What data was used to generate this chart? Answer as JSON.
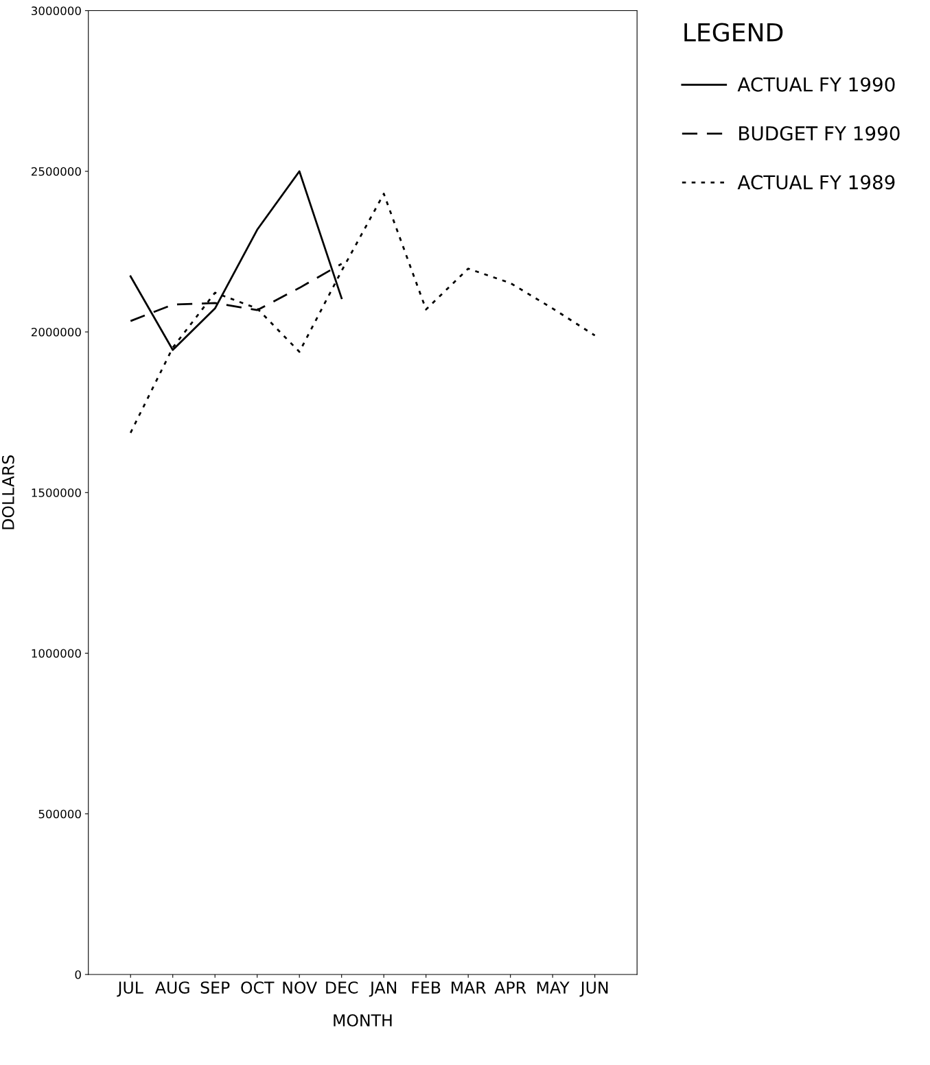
{
  "chart_data": {
    "type": "line",
    "xlabel": "MONTH",
    "ylabel": "DOLLARS",
    "legend_title": "LEGEND",
    "legend": "top right",
    "categories": [
      "JUL",
      "AUG",
      "SEP",
      "OCT",
      "NOV",
      "DEC",
      "JAN",
      "FEB",
      "MAR",
      "APR",
      "MAY",
      "JUN"
    ],
    "ylim": [
      0,
      3000000
    ],
    "yticks": [
      0,
      500000,
      1000000,
      1500000,
      2000000,
      2500000,
      3000000
    ],
    "grid": false,
    "marker": "none",
    "series": [
      {
        "name": "ACTUAL FY 1990",
        "color": "#000000",
        "line_style": "solid",
        "values": [
          2173000,
          1944000,
          2073000,
          2318000,
          2500000,
          2105000,
          null,
          null,
          null,
          null,
          null,
          null
        ]
      },
      {
        "name": "BUDGET FY 1990",
        "color": "#000000",
        "line_style": "dashed",
        "values": [
          2034000,
          2085000,
          2090000,
          2068000,
          2137000,
          2212000,
          null,
          null,
          null,
          null,
          null,
          null
        ]
      },
      {
        "name": "ACTUAL FY 1989",
        "color": "#000000",
        "line_style": "dotted",
        "values": [
          1686000,
          1951000,
          2122000,
          2073000,
          1938000,
          2190000,
          2430000,
          2070000,
          2197000,
          2152000,
          2073000,
          1989000
        ]
      }
    ]
  }
}
